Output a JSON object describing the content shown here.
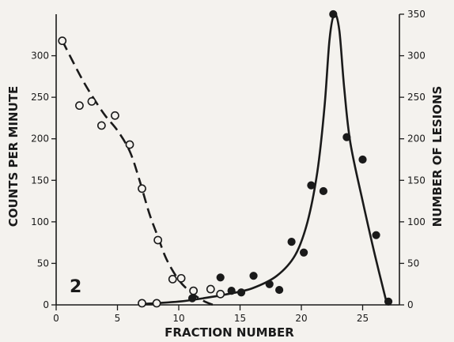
{
  "panel_label": "2",
  "chart_data": {
    "type": "scatter",
    "xlabel": "FRACTION NUMBER",
    "ylabel": "COUNTS PER MINUTE",
    "y2label": "NUMBER OF LESIONS",
    "xlim": [
      0,
      28
    ],
    "ylim": [
      0,
      350
    ],
    "y2lim": [
      0,
      350
    ],
    "xticks": [
      0,
      5,
      10,
      15,
      20,
      25
    ],
    "xtick_labels": [
      "0",
      "5",
      "10",
      "15",
      "20",
      "25"
    ],
    "yticks": [
      0,
      50,
      100,
      150,
      200,
      250,
      300
    ],
    "ytick_labels": [
      "0",
      "50",
      "100",
      "150",
      "200",
      "250",
      "300"
    ],
    "y2ticks": [
      0,
      50,
      100,
      150,
      200,
      250,
      300,
      350
    ],
    "y2tick_labels": [
      "0",
      "50",
      "100",
      "150",
      "200",
      "250",
      "300",
      "350"
    ],
    "grid": false,
    "series": [
      {
        "axis": "left",
        "marker": "open-circle",
        "line": "dashed",
        "points": [
          [
            0.5,
            318
          ],
          [
            1.9,
            240
          ],
          [
            2.9,
            245
          ],
          [
            3.7,
            216
          ],
          [
            4.8,
            228
          ],
          [
            6.0,
            193
          ],
          [
            7.0,
            140
          ],
          [
            8.3,
            78
          ],
          [
            9.5,
            31
          ],
          [
            10.2,
            32
          ],
          [
            11.2,
            17
          ],
          [
            12.6,
            19
          ],
          [
            13.4,
            13
          ],
          [
            7.0,
            2
          ],
          [
            8.2,
            2
          ]
        ],
        "fit": [
          [
            0.5,
            318
          ],
          [
            2,
            275
          ],
          [
            3,
            250
          ],
          [
            4,
            228
          ],
          [
            5,
            210
          ],
          [
            6,
            185
          ],
          [
            6.8,
            150
          ],
          [
            7.6,
            110
          ],
          [
            8.3,
            82
          ],
          [
            9,
            55
          ],
          [
            10,
            30
          ],
          [
            11,
            15
          ],
          [
            12,
            5
          ],
          [
            12.8,
            0
          ]
        ]
      },
      {
        "axis": "right",
        "marker": "filled-circle",
        "line": "solid",
        "points": [
          [
            11.1,
            8
          ],
          [
            13.4,
            33
          ],
          [
            14.3,
            17
          ],
          [
            15.1,
            15
          ],
          [
            16.1,
            35
          ],
          [
            17.4,
            25
          ],
          [
            18.2,
            18
          ],
          [
            19.2,
            76
          ],
          [
            20.2,
            63
          ],
          [
            20.8,
            144
          ],
          [
            21.8,
            137
          ],
          [
            22.6,
            350
          ],
          [
            23.7,
            202
          ],
          [
            25.0,
            175
          ],
          [
            26.1,
            84
          ],
          [
            27.1,
            4
          ]
        ],
        "fit": [
          [
            7,
            1
          ],
          [
            10,
            4
          ],
          [
            12,
            8
          ],
          [
            14,
            13
          ],
          [
            16,
            20
          ],
          [
            18,
            35
          ],
          [
            19.5,
            60
          ],
          [
            20.5,
            100
          ],
          [
            21.3,
            160
          ],
          [
            21.9,
            240
          ],
          [
            22.3,
            320
          ],
          [
            22.7,
            350
          ],
          [
            23.1,
            330
          ],
          [
            23.5,
            260
          ],
          [
            24,
            195
          ],
          [
            25,
            125
          ],
          [
            26,
            60
          ],
          [
            27,
            0
          ]
        ]
      }
    ]
  }
}
